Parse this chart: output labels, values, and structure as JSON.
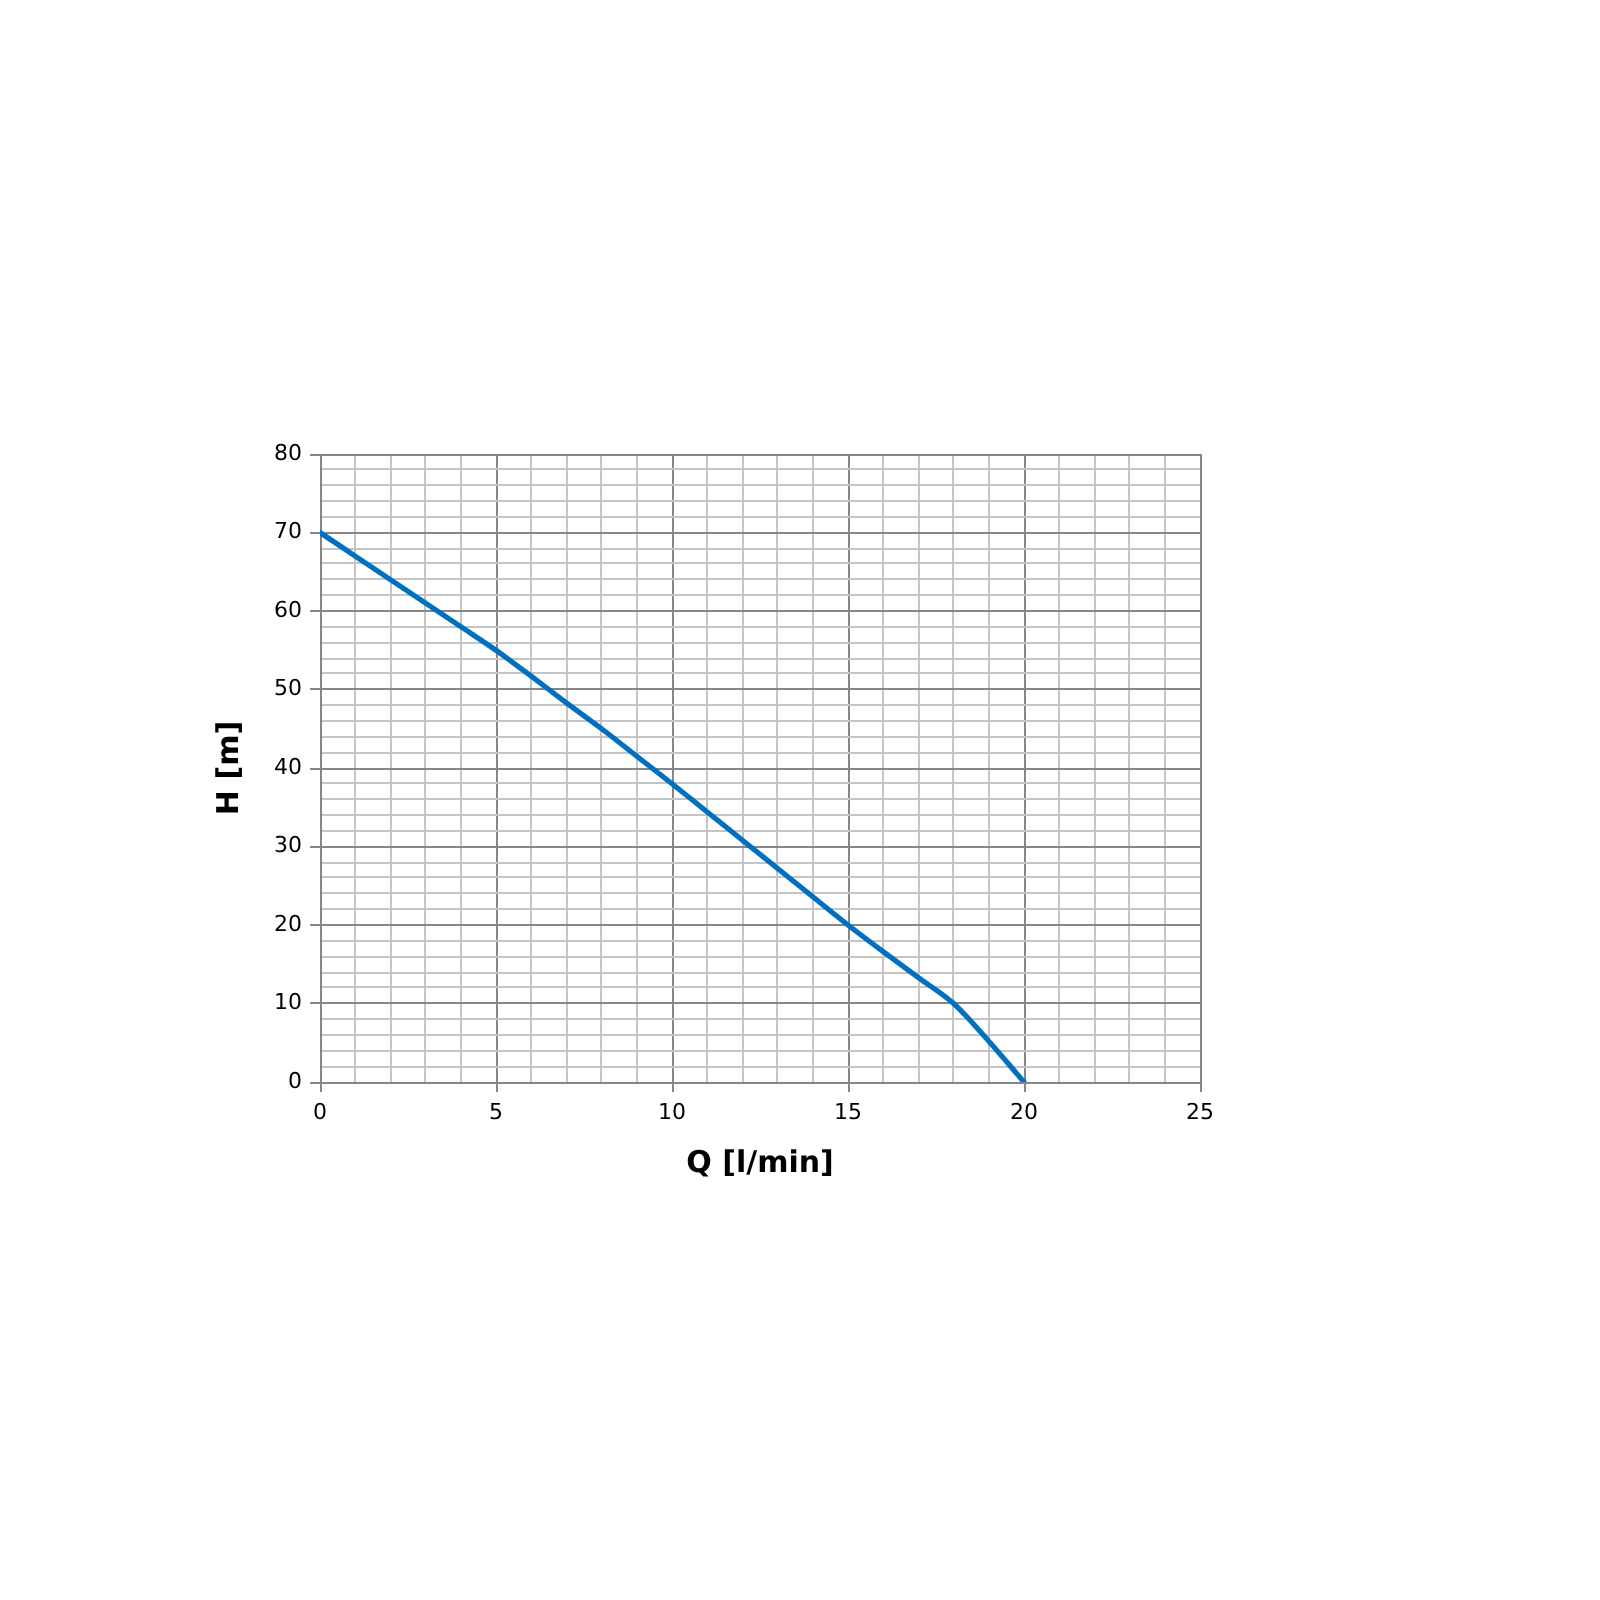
{
  "chart_data": {
    "type": "line",
    "xlabel": "Q [l/min]",
    "ylabel": "H [m]",
    "x": [
      0,
      1,
      2,
      3,
      4,
      5,
      6,
      7,
      8,
      9,
      10,
      11,
      12,
      13,
      14,
      15,
      16,
      17,
      18,
      19,
      20
    ],
    "series": [
      {
        "color": "#0070c0",
        "values": [
          70,
          67,
          64,
          61,
          58,
          55,
          51.7,
          48.3,
          45,
          41.5,
          38,
          34.4,
          30.8,
          27.2,
          23.6,
          20,
          16.6,
          13.3,
          10,
          5.2,
          0
        ]
      }
    ],
    "xlim": [
      0,
      25
    ],
    "xticks": [
      0,
      {
        "value": 1,
        "label": null
      },
      {
        "value": 2,
        "label": null
      },
      {
        "value": 3,
        "label": null
      },
      {
        "value": 4,
        "label": null
      },
      5,
      {
        "value": 6,
        "label": null
      },
      {
        "value": 7,
        "label": null
      },
      {
        "value": 8,
        "label": null
      },
      {
        "value": 9,
        "label": null
      },
      10,
      {
        "value": 11,
        "label": null
      },
      {
        "value": 12,
        "label": null
      },
      {
        "value": 13,
        "label": null
      },
      {
        "value": 14,
        "label": null
      },
      15,
      {
        "value": 16,
        "label": null
      },
      {
        "value": 17,
        "label": null
      },
      {
        "value": 18,
        "label": null
      },
      {
        "value": 19,
        "label": null
      },
      20,
      {
        "value": 21,
        "label": null
      },
      {
        "value": 22,
        "label": null
      },
      {
        "value": 23,
        "label": null
      },
      {
        "value": 24,
        "label": null
      },
      25
    ],
    "ylim": [
      0,
      80
    ],
    "yticks": [
      0,
      {
        "value": 2,
        "label": null
      },
      {
        "value": 4,
        "label": null
      },
      {
        "value": 6,
        "label": null
      },
      {
        "value": 8,
        "label": null
      },
      10,
      {
        "value": 12,
        "label": null
      },
      {
        "value": 14,
        "label": null
      },
      {
        "value": 16,
        "label": null
      },
      {
        "value": 18,
        "label": null
      },
      20,
      {
        "value": 22,
        "label": null
      },
      {
        "value": 24,
        "label": null
      },
      {
        "value": 26,
        "label": null
      },
      {
        "value": 28,
        "label": null
      },
      30,
      {
        "value": 32,
        "label": null
      },
      {
        "value": 34,
        "label": null
      },
      {
        "value": 36,
        "label": null
      },
      {
        "value": 38,
        "label": null
      },
      40,
      {
        "value": 42,
        "label": null
      },
      {
        "value": 44,
        "label": null
      },
      {
        "value": 46,
        "label": null
      },
      {
        "value": 48,
        "label": null
      },
      50,
      {
        "value": 52,
        "label": null
      },
      {
        "value": 54,
        "label": null
      },
      {
        "value": 56,
        "label": null
      },
      {
        "value": 58,
        "label": null
      },
      60,
      {
        "value": 62,
        "label": null
      },
      {
        "value": 64,
        "label": null
      },
      {
        "value": 66,
        "label": null
      },
      {
        "value": 68,
        "label": null
      },
      70,
      {
        "value": 72,
        "label": null
      },
      {
        "value": 74,
        "label": null
      },
      {
        "value": 76,
        "label": null
      },
      {
        "value": 78,
        "label": null
      },
      80
    ],
    "grid": true,
    "marker": "none",
    "line_style": "solid"
  }
}
